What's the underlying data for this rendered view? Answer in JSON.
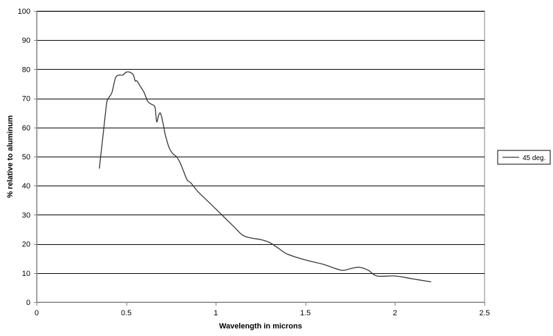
{
  "chart_data": {
    "type": "line",
    "title": "",
    "xlabel": "Wavelength  in microns",
    "ylabel": "% relative to aluminum",
    "xlim": [
      0,
      2.5
    ],
    "ylim": [
      0,
      100
    ],
    "x_ticks": [
      "0",
      "0.5",
      "1",
      "1.5",
      "2",
      "2.5"
    ],
    "y_ticks": [
      "0",
      "10",
      "20",
      "30",
      "40",
      "50",
      "60",
      "70",
      "80",
      "90",
      "100"
    ],
    "grid": "horizontal",
    "legend_position": "right",
    "series": [
      {
        "name": "45 deg.",
        "color": "#333333",
        "x": [
          0.35,
          0.37,
          0.39,
          0.4,
          0.42,
          0.44,
          0.46,
          0.48,
          0.5,
          0.52,
          0.54,
          0.55,
          0.56,
          0.58,
          0.6,
          0.62,
          0.64,
          0.66,
          0.67,
          0.68,
          0.69,
          0.7,
          0.71,
          0.72,
          0.74,
          0.76,
          0.78,
          0.8,
          0.82,
          0.84,
          0.86,
          0.9,
          0.95,
          1.0,
          1.05,
          1.1,
          1.15,
          1.2,
          1.25,
          1.3,
          1.35,
          1.4,
          1.5,
          1.6,
          1.7,
          1.75,
          1.8,
          1.85,
          1.9,
          2.0,
          2.1,
          2.2
        ],
        "y": [
          46,
          57,
          68,
          70,
          72,
          77,
          78,
          78,
          79,
          79,
          78,
          76,
          76,
          74,
          72,
          69,
          68,
          67,
          62,
          64,
          65,
          63,
          60,
          57,
          53,
          51,
          50,
          48,
          45,
          42,
          41,
          38,
          35,
          32,
          29,
          26,
          23,
          22,
          21.5,
          20.5,
          18.5,
          16.5,
          14.5,
          13,
          11,
          11.5,
          12,
          11,
          9,
          9,
          8,
          7
        ]
      }
    ]
  }
}
